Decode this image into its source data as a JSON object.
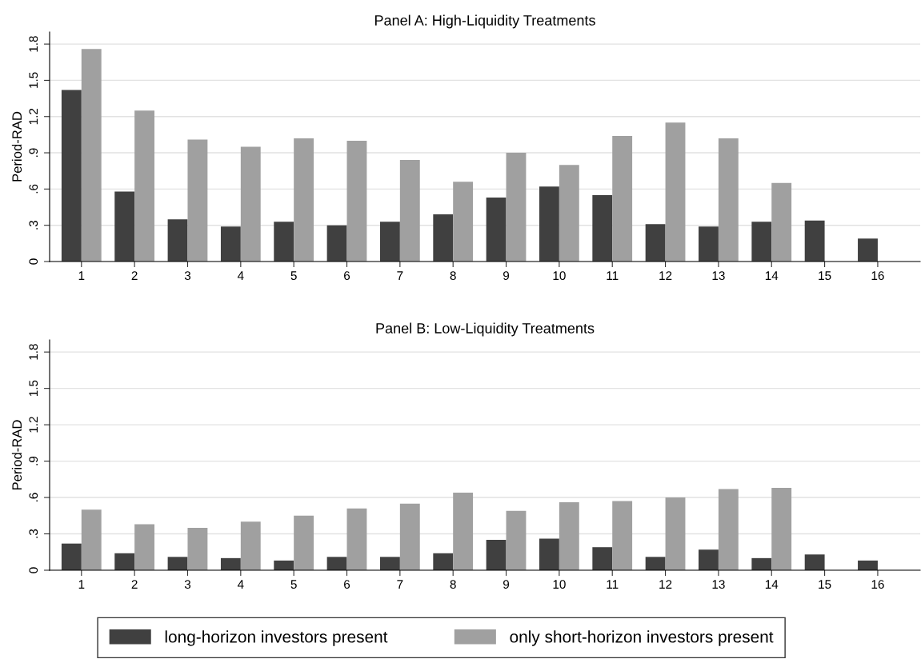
{
  "chart_data": [
    {
      "type": "bar",
      "title": "Panel A: High-Liquidity Treatments",
      "ylabel": "Period-RAD",
      "categories": [
        "1",
        "2",
        "3",
        "4",
        "5",
        "6",
        "7",
        "8",
        "9",
        "10",
        "11",
        "12",
        "13",
        "14",
        "15",
        "16"
      ],
      "series": [
        {
          "color": "#404040",
          "values": [
            1.42,
            0.58,
            0.35,
            0.29,
            0.33,
            0.3,
            0.33,
            0.39,
            0.53,
            0.62,
            0.55,
            0.31,
            0.29,
            0.33,
            0.34,
            0.19
          ]
        },
        {
          "color": "#a0a0a0",
          "values": [
            1.76,
            1.25,
            1.01,
            0.95,
            1.02,
            1.0,
            0.84,
            0.66,
            0.9,
            0.8,
            1.04,
            1.15,
            1.02,
            0.65,
            null,
            null
          ]
        }
      ],
      "ylim": [
        0,
        1.9
      ],
      "yticks": [
        0,
        {
          "value": 0.3,
          "label": ".3"
        },
        {
          "value": 0.6,
          "label": ".6"
        },
        {
          "value": 0.9,
          "label": ".9"
        },
        1.2,
        1.5,
        1.8
      ],
      "grid": "y",
      "legend": false
    },
    {
      "type": "bar",
      "title": "Panel B: Low-Liquidity Treatments",
      "ylabel": "Period-RAD",
      "categories": [
        "1",
        "2",
        "3",
        "4",
        "5",
        "6",
        "7",
        "8",
        "9",
        "10",
        "11",
        "12",
        "13",
        "14",
        "15",
        "16"
      ],
      "series": [
        {
          "name": "long-horizon investors present",
          "color": "#404040",
          "values": [
            0.22,
            0.14,
            0.11,
            0.1,
            0.08,
            0.11,
            0.11,
            0.14,
            0.25,
            0.26,
            0.19,
            0.11,
            0.17,
            0.1,
            0.13,
            0.08
          ]
        },
        {
          "name": "only short-horizon investors present",
          "color": "#a0a0a0",
          "values": [
            0.5,
            0.38,
            0.35,
            0.4,
            0.45,
            0.51,
            0.55,
            0.64,
            0.49,
            0.56,
            0.57,
            0.6,
            0.67,
            0.68,
            null,
            null
          ]
        }
      ],
      "ylim": [
        0,
        1.9
      ],
      "yticks": [
        0,
        {
          "value": 0.3,
          "label": ".3"
        },
        {
          "value": 0.6,
          "label": ".6"
        },
        {
          "value": 0.9,
          "label": ".9"
        },
        1.2,
        1.5,
        1.8
      ],
      "grid": "y",
      "legend": "bottom"
    }
  ]
}
